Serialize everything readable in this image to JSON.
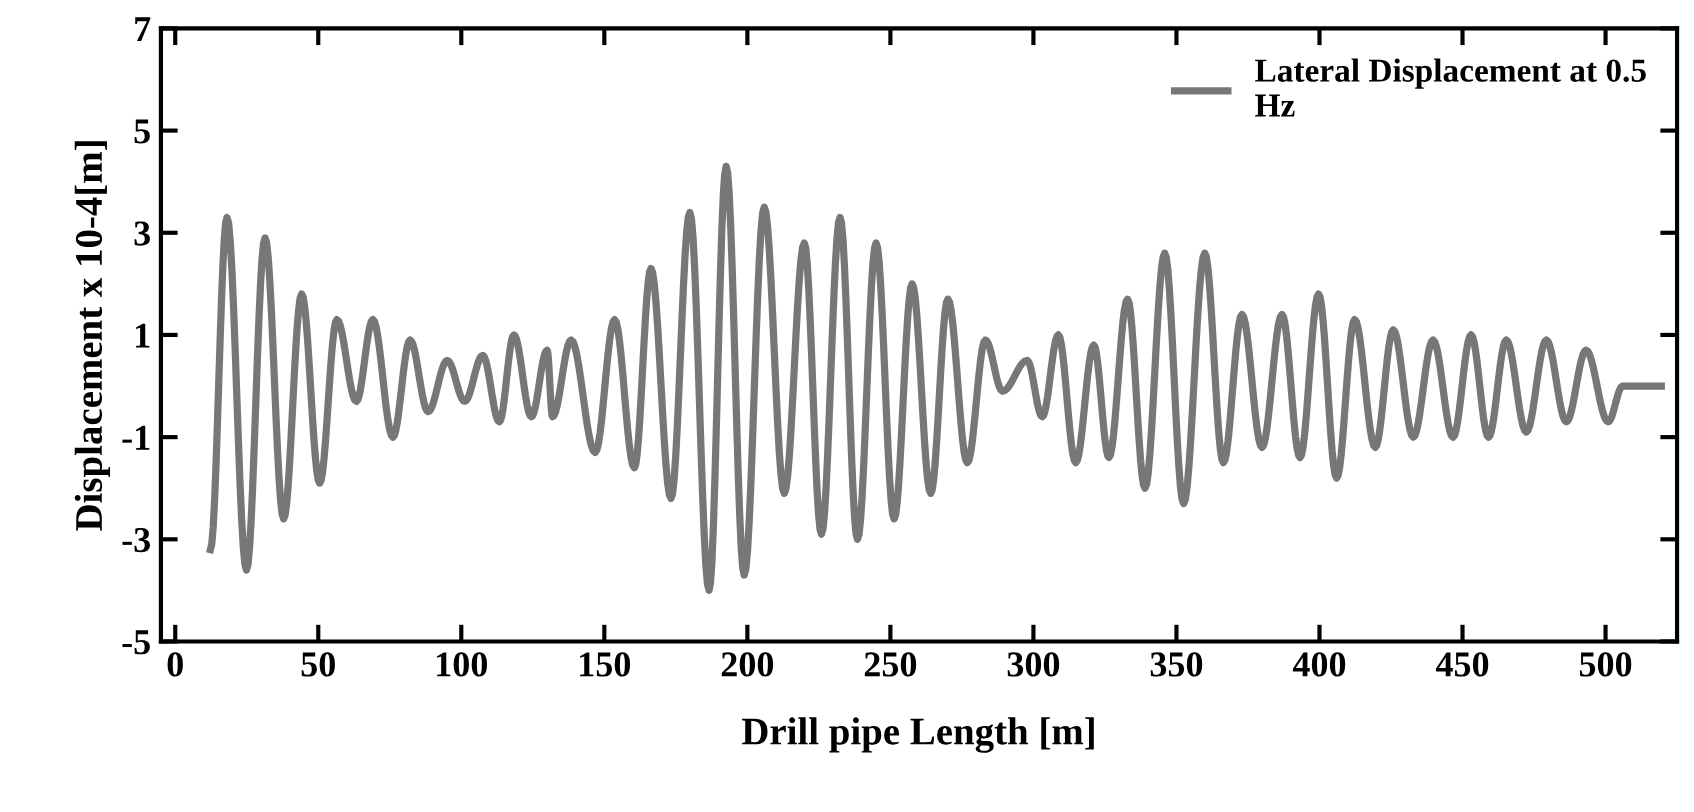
{
  "chart_data": {
    "type": "line",
    "xlabel": "Drill pipe Length [m]",
    "ylabel": "Displacement x 10-4[m]",
    "xlim": [
      -5,
      525
    ],
    "xticks": [
      0,
      50,
      100,
      150,
      200,
      250,
      300,
      350,
      400,
      450,
      500
    ],
    "ylim": [
      -5,
      7
    ],
    "yticks": [
      -5,
      -3,
      -1,
      1,
      3,
      5,
      7
    ],
    "grid": false,
    "legend": "top right",
    "marker": "none",
    "line_style": "solid",
    "series": [
      {
        "name": "Lateral Displacement at 0.5 Hz",
        "color": "#777777",
        "x": [
          12.3,
          18.1,
          24.9,
          31.4,
          37.9,
          44.2,
          50.5,
          56.5,
          63.3,
          69.1,
          76.1,
          82.1,
          88.4,
          95.1,
          101.2,
          107.5,
          113.3,
          118.4,
          124.5,
          130.0,
          131.9,
          138.4,
          146.8,
          153.6,
          160.5,
          166.3,
          173.3,
          179.9,
          186.6,
          192.6,
          198.9,
          205.9,
          212.9,
          219.9,
          225.9,
          232.4,
          238.5,
          245.0,
          251.3,
          257.6,
          264.1,
          270.1,
          276.9,
          283.2,
          289.2,
          297.8,
          303.1,
          308.7,
          314.8,
          321.1,
          326.4,
          332.9,
          339.0,
          345.9,
          352.5,
          359.9,
          366.4,
          372.9,
          379.9,
          386.9,
          393.2,
          399.7,
          406.0,
          412.3,
          419.5,
          425.8,
          432.8,
          439.7,
          446.7,
          453.0,
          459.1,
          465.3,
          472.3,
          479.3,
          486.3,
          493.2,
          500.9,
          506.0,
          519.5
        ],
        "values": [
          -3.2,
          3.3,
          -3.6,
          2.9,
          -2.6,
          1.8,
          -1.9,
          1.3,
          -0.3,
          1.3,
          -1.0,
          0.9,
          -0.5,
          0.5,
          -0.3,
          0.6,
          -0.7,
          1.0,
          -0.6,
          0.7,
          -0.6,
          0.9,
          -1.3,
          1.3,
          -1.6,
          2.3,
          -2.2,
          3.4,
          -4.0,
          4.3,
          -3.7,
          3.5,
          -2.1,
          2.8,
          -2.9,
          3.3,
          -3.0,
          2.8,
          -2.6,
          2.0,
          -2.1,
          1.7,
          -1.5,
          0.9,
          -0.1,
          0.5,
          -0.6,
          1.0,
          -1.5,
          0.8,
          -1.4,
          1.7,
          -2.0,
          2.6,
          -2.3,
          2.6,
          -1.5,
          1.4,
          -1.2,
          1.4,
          -1.4,
          1.8,
          -1.8,
          1.3,
          -1.2,
          1.1,
          -1.0,
          0.9,
          -1.0,
          1.0,
          -1.0,
          0.9,
          -0.9,
          0.9,
          -0.7,
          0.7,
          -0.7,
          0.0,
          0.0
        ]
      }
    ]
  }
}
